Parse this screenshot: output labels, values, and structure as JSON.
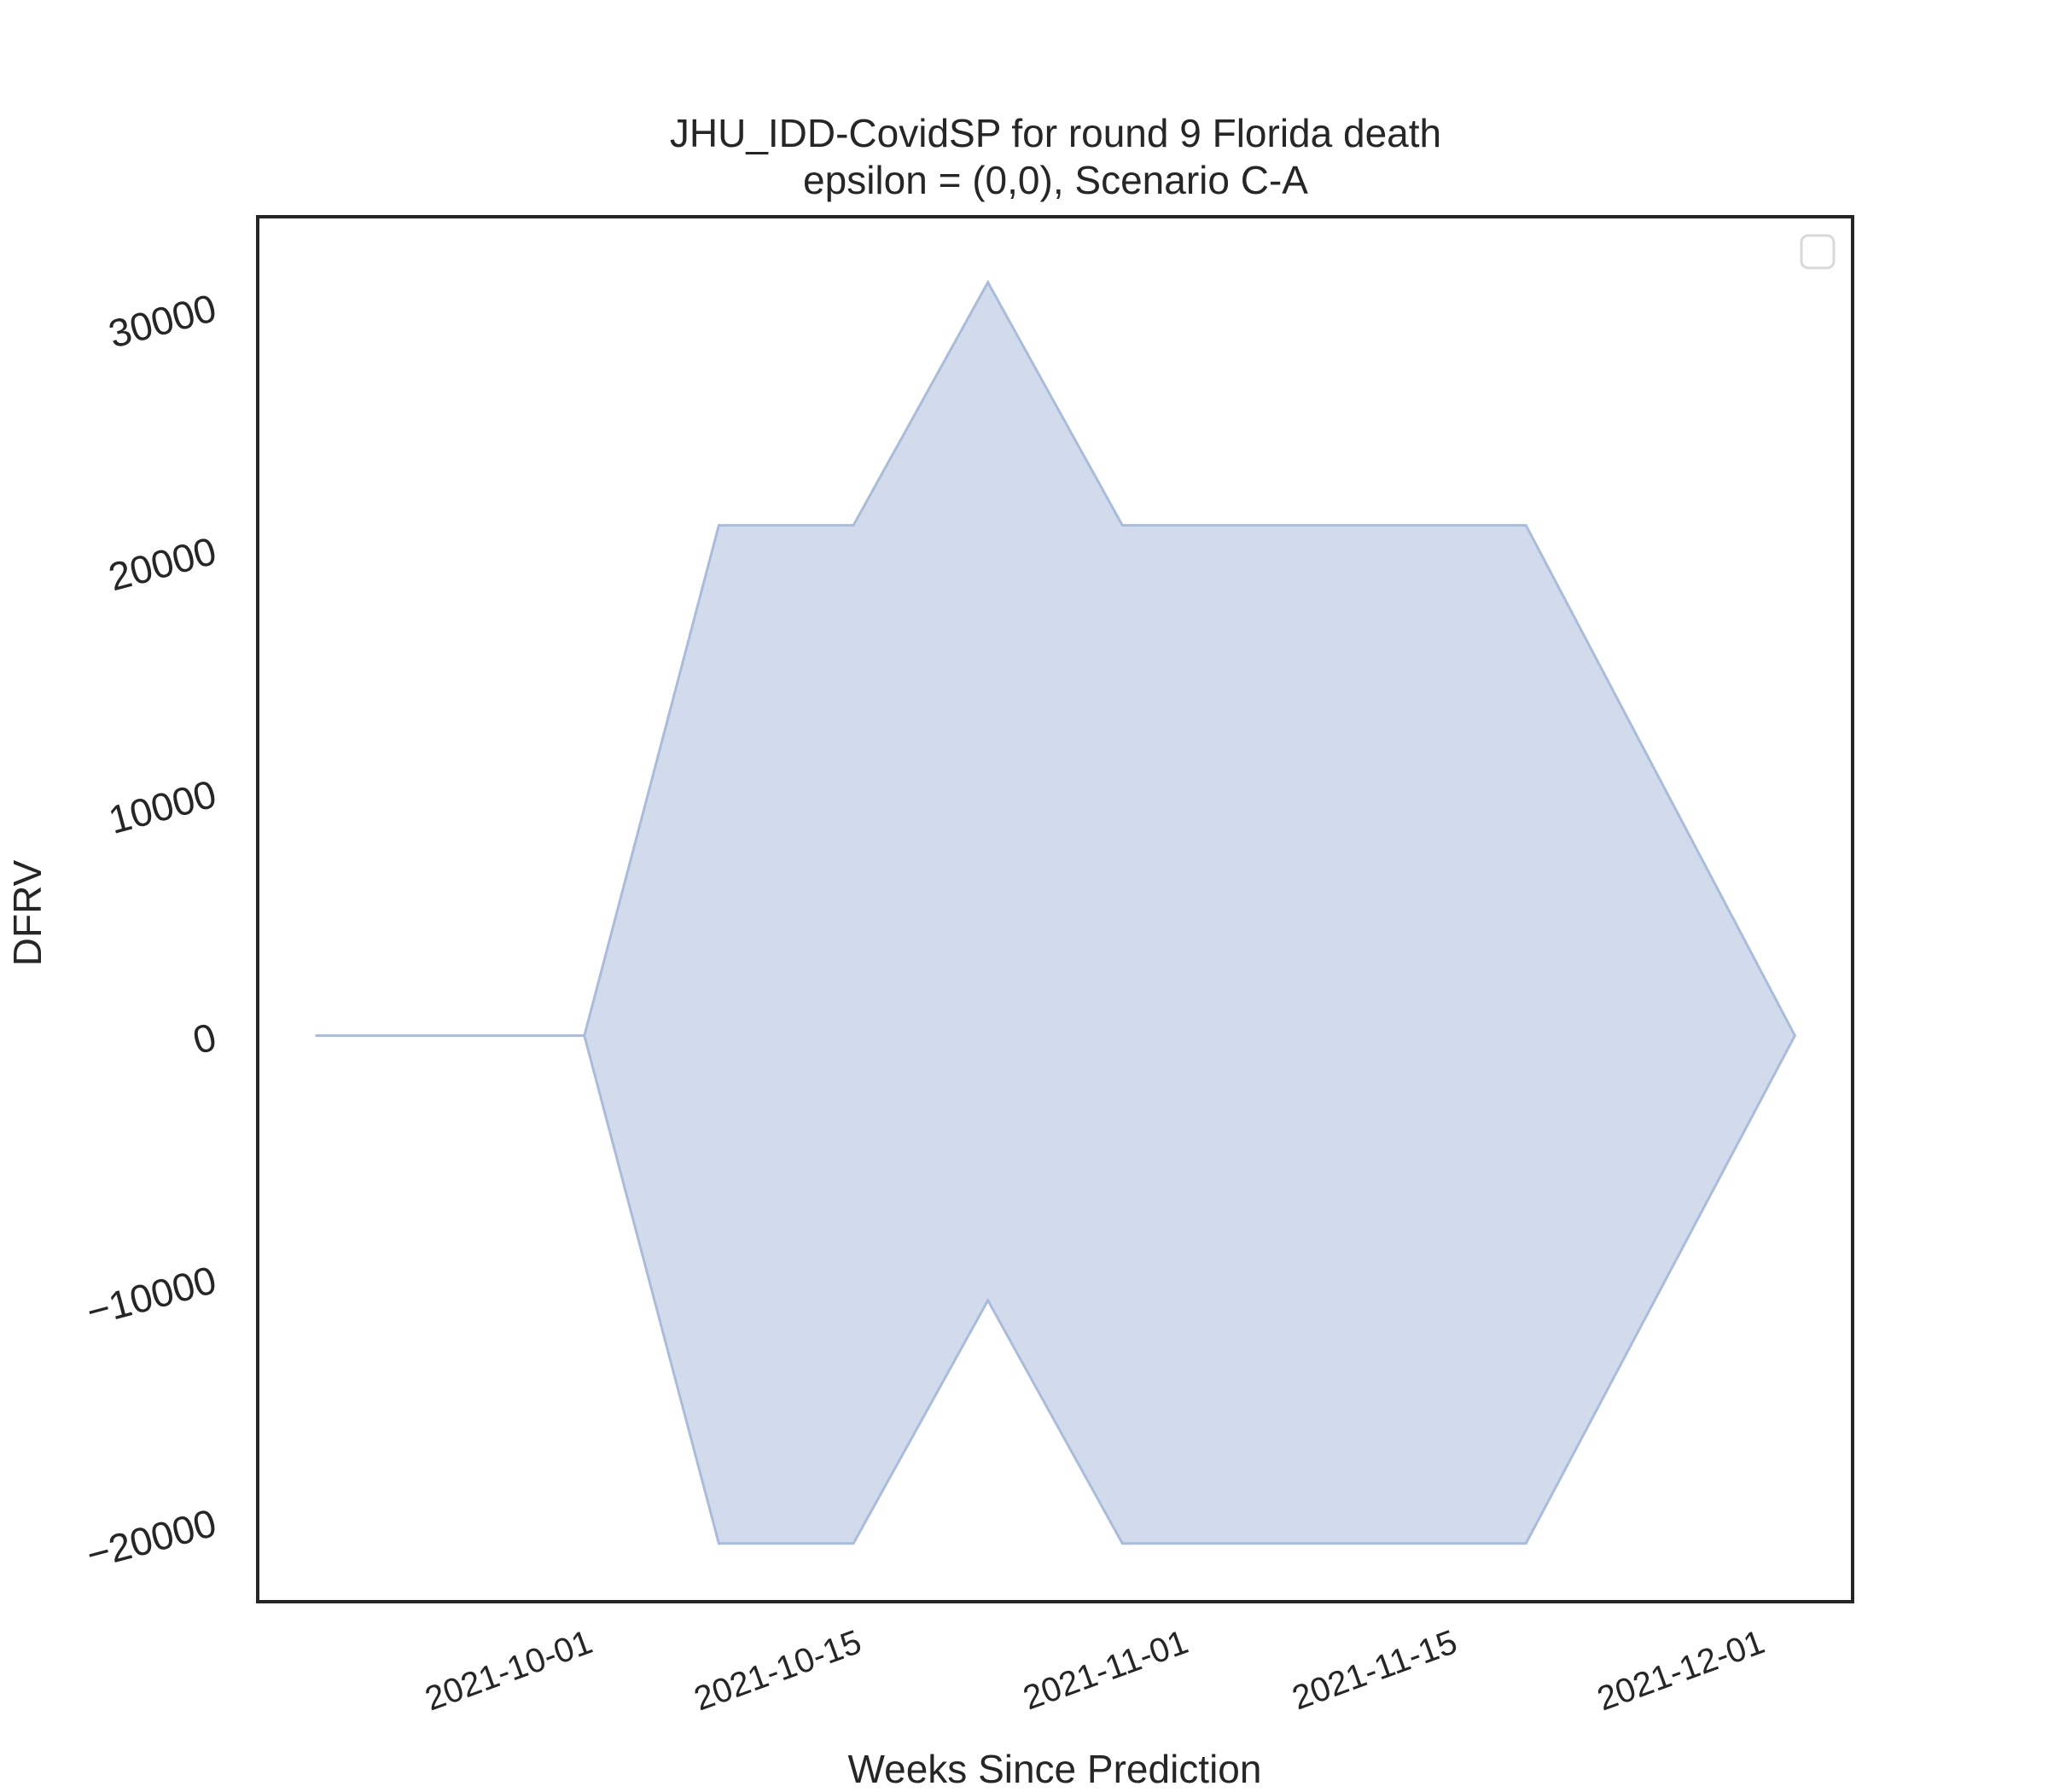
{
  "chart_data": {
    "type": "area",
    "title": "JHU_IDD-CovidSP for round 9 Florida death",
    "subtitle": "epsilon = (0,0), Scenario C-A",
    "xlabel": "Weeks Since Prediction",
    "ylabel": "DFRV",
    "x_tick_labels": [
      "2021-10-01",
      "2021-10-15",
      "2021-11-01",
      "2021-11-15",
      "2021-12-01"
    ],
    "y_tick_labels": [
      "−20000",
      "−10000",
      "0",
      "10000",
      "20000",
      "30000"
    ],
    "y_ticks": [
      -20000,
      -10000,
      0,
      10000,
      20000,
      30000
    ],
    "ylim": [
      -23300,
      33700
    ],
    "x_range": [
      "2021-09-14",
      "2021-12-06"
    ],
    "grid": false,
    "legend": {
      "placement": "top-right",
      "entries": []
    },
    "band_color": "#b8c7e0",
    "band_edge_color": "#a8bcdb",
    "series": [
      {
        "x": [
          "2021-09-17",
          "2021-10-01",
          "2021-10-08",
          "2021-10-15",
          "2021-10-22",
          "2021-10-29",
          "2021-11-05",
          "2021-11-12",
          "2021-11-19",
          "2021-12-03"
        ],
        "lower": [
          0,
          0,
          -20900,
          -20900,
          -10900,
          -20900,
          -20900,
          -20900,
          -20900,
          0
        ],
        "upper": [
          0,
          0,
          21000,
          21000,
          31000,
          21000,
          21000,
          21000,
          21000,
          0
        ]
      }
    ]
  }
}
